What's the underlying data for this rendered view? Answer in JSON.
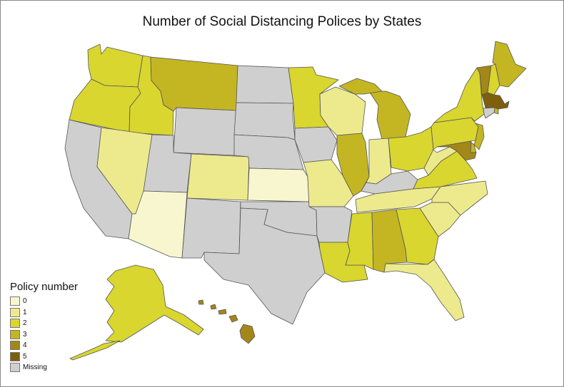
{
  "title": "Number of Social Distancing Polices by States",
  "legend": {
    "title": "Policy number",
    "items": [
      {
        "label": "0",
        "color": "#f7f6cf"
      },
      {
        "label": "1",
        "color": "#ecea8d"
      },
      {
        "label": "2",
        "color": "#d9d62f"
      },
      {
        "label": "3",
        "color": "#c4b623"
      },
      {
        "label": "4",
        "color": "#a38718"
      },
      {
        "label": "5",
        "color": "#7d5f0e"
      },
      {
        "label": "Missing",
        "color": "#cfcfcf"
      }
    ]
  },
  "states": {
    "WA": {
      "name": "Washington",
      "policies": 2
    },
    "OR": {
      "name": "Oregon",
      "policies": 2
    },
    "CA": {
      "name": "California",
      "policies": "Missing"
    },
    "ID": {
      "name": "Idaho",
      "policies": 2
    },
    "NV": {
      "name": "Nevada",
      "policies": 1
    },
    "MT": {
      "name": "Montana",
      "policies": 3
    },
    "WY": {
      "name": "Wyoming",
      "policies": "Missing"
    },
    "UT": {
      "name": "Utah",
      "policies": "Missing"
    },
    "AZ": {
      "name": "Arizona",
      "policies": 0
    },
    "CO": {
      "name": "Colorado",
      "policies": 1
    },
    "NM": {
      "name": "New Mexico",
      "policies": "Missing"
    },
    "ND": {
      "name": "North Dakota",
      "policies": "Missing"
    },
    "SD": {
      "name": "South Dakota",
      "policies": "Missing"
    },
    "NE": {
      "name": "Nebraska",
      "policies": "Missing"
    },
    "KS": {
      "name": "Kansas",
      "policies": 0
    },
    "OK": {
      "name": "Oklahoma",
      "policies": "Missing"
    },
    "TX": {
      "name": "Texas",
      "policies": "Missing"
    },
    "MN": {
      "name": "Minnesota",
      "policies": 2
    },
    "IA": {
      "name": "Iowa",
      "policies": "Missing"
    },
    "MO": {
      "name": "Missouri",
      "policies": 1
    },
    "AR": {
      "name": "Arkansas",
      "policies": "Missing"
    },
    "LA": {
      "name": "Louisiana",
      "policies": 2
    },
    "WI": {
      "name": "Wisconsin",
      "policies": 1
    },
    "IL": {
      "name": "Illinois",
      "policies": 3
    },
    "MI": {
      "name": "Michigan",
      "policies": 3
    },
    "IN": {
      "name": "Indiana",
      "policies": 1
    },
    "OH": {
      "name": "Ohio",
      "policies": 2
    },
    "KY": {
      "name": "Kentucky",
      "policies": "Missing"
    },
    "TN": {
      "name": "Tennessee",
      "policies": 1
    },
    "MS": {
      "name": "Mississippi",
      "policies": 2
    },
    "AL": {
      "name": "Alabama",
      "policies": 3
    },
    "GA": {
      "name": "Georgia",
      "policies": 2
    },
    "FL": {
      "name": "Florida",
      "policies": 1
    },
    "SC": {
      "name": "South Carolina",
      "policies": 1
    },
    "NC": {
      "name": "North Carolina",
      "policies": 1
    },
    "VA": {
      "name": "Virginia",
      "policies": 2
    },
    "WV": {
      "name": "West Virginia",
      "policies": 1
    },
    "PA": {
      "name": "Pennsylvania",
      "policies": 2
    },
    "NY": {
      "name": "New York",
      "policies": 2
    },
    "NJ": {
      "name": "New Jersey",
      "policies": 3
    },
    "DE": {
      "name": "Delaware",
      "policies": 3
    },
    "MD": {
      "name": "Maryland",
      "policies": 4
    },
    "VT": {
      "name": "Vermont",
      "policies": 4
    },
    "NH": {
      "name": "New Hampshire",
      "policies": 2
    },
    "ME": {
      "name": "Maine",
      "policies": 3
    },
    "MA": {
      "name": "Massachusetts",
      "policies": 5
    },
    "RI": {
      "name": "Rhode Island",
      "policies": 3
    },
    "CT": {
      "name": "Connecticut",
      "policies": "Missing"
    },
    "AK": {
      "name": "Alaska",
      "policies": 2
    },
    "HI": {
      "name": "Hawaii",
      "policies": 4
    }
  }
}
